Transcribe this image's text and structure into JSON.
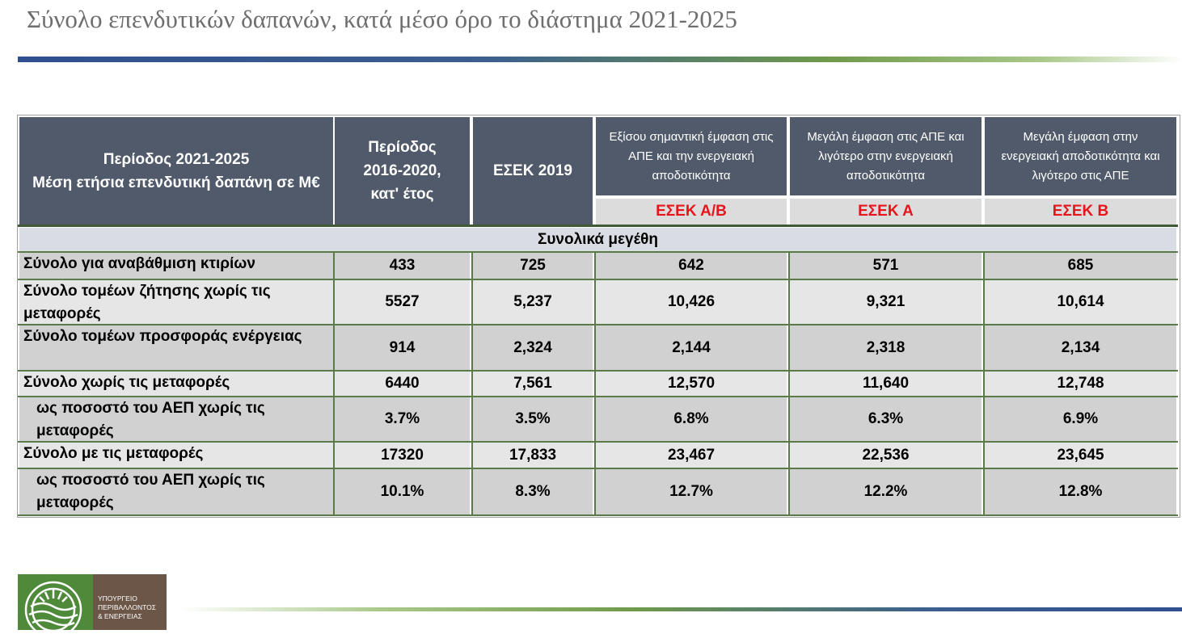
{
  "title": "Σύνολο επενδυτικών δαπανών, κατά μέσο όρο το διάστημα 2021-2025",
  "table": {
    "header": {
      "col0": [
        "Περίοδος 2021-2025",
        "Μέση ετήσια επενδυτική δαπάνη σε Μ€"
      ],
      "col1": [
        "Περίοδος",
        "2016-2020,",
        "κατ' έτος"
      ],
      "col2": "ΕΣΕΚ 2019",
      "col3": [
        "Εξίσου σημαντική έμφαση στις",
        "ΑΠΕ και την ενεργειακή",
        "αποδοτικότητα"
      ],
      "col4": [
        "Μεγάλη έμφαση στις ΑΠΕ και",
        "λιγότερο στην ενεργειακή",
        "αποδοτικότητα"
      ],
      "col5": [
        "Μεγάλη έμφαση στην",
        "ενεργειακή αποδοτικότητα και",
        "λιγότερο στις ΑΠΕ"
      ]
    },
    "scenarios": [
      "ΕΣΕΚ Α/Β",
      "ΕΣΕΚ Α",
      "ΕΣΕΚ Β"
    ],
    "section": "Συνολικά μεγέθη",
    "rows": [
      {
        "label": [
          "Σύνολο για αναβάθμιση κτιρίων"
        ],
        "values": [
          "433",
          "725",
          "642",
          "571",
          "685"
        ]
      },
      {
        "label": [
          "Σύνολο τομέων ζήτησης χωρίς τις",
          "μεταφορές"
        ],
        "values": [
          "5527",
          "5,237",
          "10,426",
          "9,321",
          "10,614"
        ]
      },
      {
        "label": [
          "Σύνολο τομέων προσφοράς ενέργειας"
        ],
        "values": [
          "914",
          "2,324",
          "2,144",
          "2,318",
          "2,134"
        ]
      },
      {
        "label": [
          "Σύνολο χωρίς τις μεταφορές"
        ],
        "values": [
          "6440",
          "7,561",
          "12,570",
          "11,640",
          "12,748"
        ]
      },
      {
        "label": [
          "ως ποσοστό του ΑΕΠ χωρίς τις",
          "μεταφορές"
        ],
        "values": [
          "3.7%",
          "3.5%",
          "6.8%",
          "6.3%",
          "6.9%"
        ]
      },
      {
        "label": [
          "Σύνολο με τις μεταφορές"
        ],
        "values": [
          "17320",
          "17,833",
          "23,467",
          "22,536",
          "23,645"
        ]
      },
      {
        "label": [
          "ως ποσοστό του ΑΕΠ χωρίς τις",
          "μεταφορές"
        ],
        "values": [
          "10.1%",
          "8.3%",
          "12.7%",
          "12.2%",
          "12.8%"
        ]
      }
    ]
  },
  "logo": {
    "lines": [
      "ΥΠΟΥΡΓΕΙΟ",
      "ΠΕΡΙΒΑΛΛΟΝΤΟΣ",
      "& ΕΝΕΡΓΕΙΑΣ"
    ],
    "icon": "ministry-emblem"
  },
  "colors": {
    "header_bg": "#505a6b",
    "scenario_text": "#e8141c",
    "grid_line": "#5a7a4a"
  }
}
